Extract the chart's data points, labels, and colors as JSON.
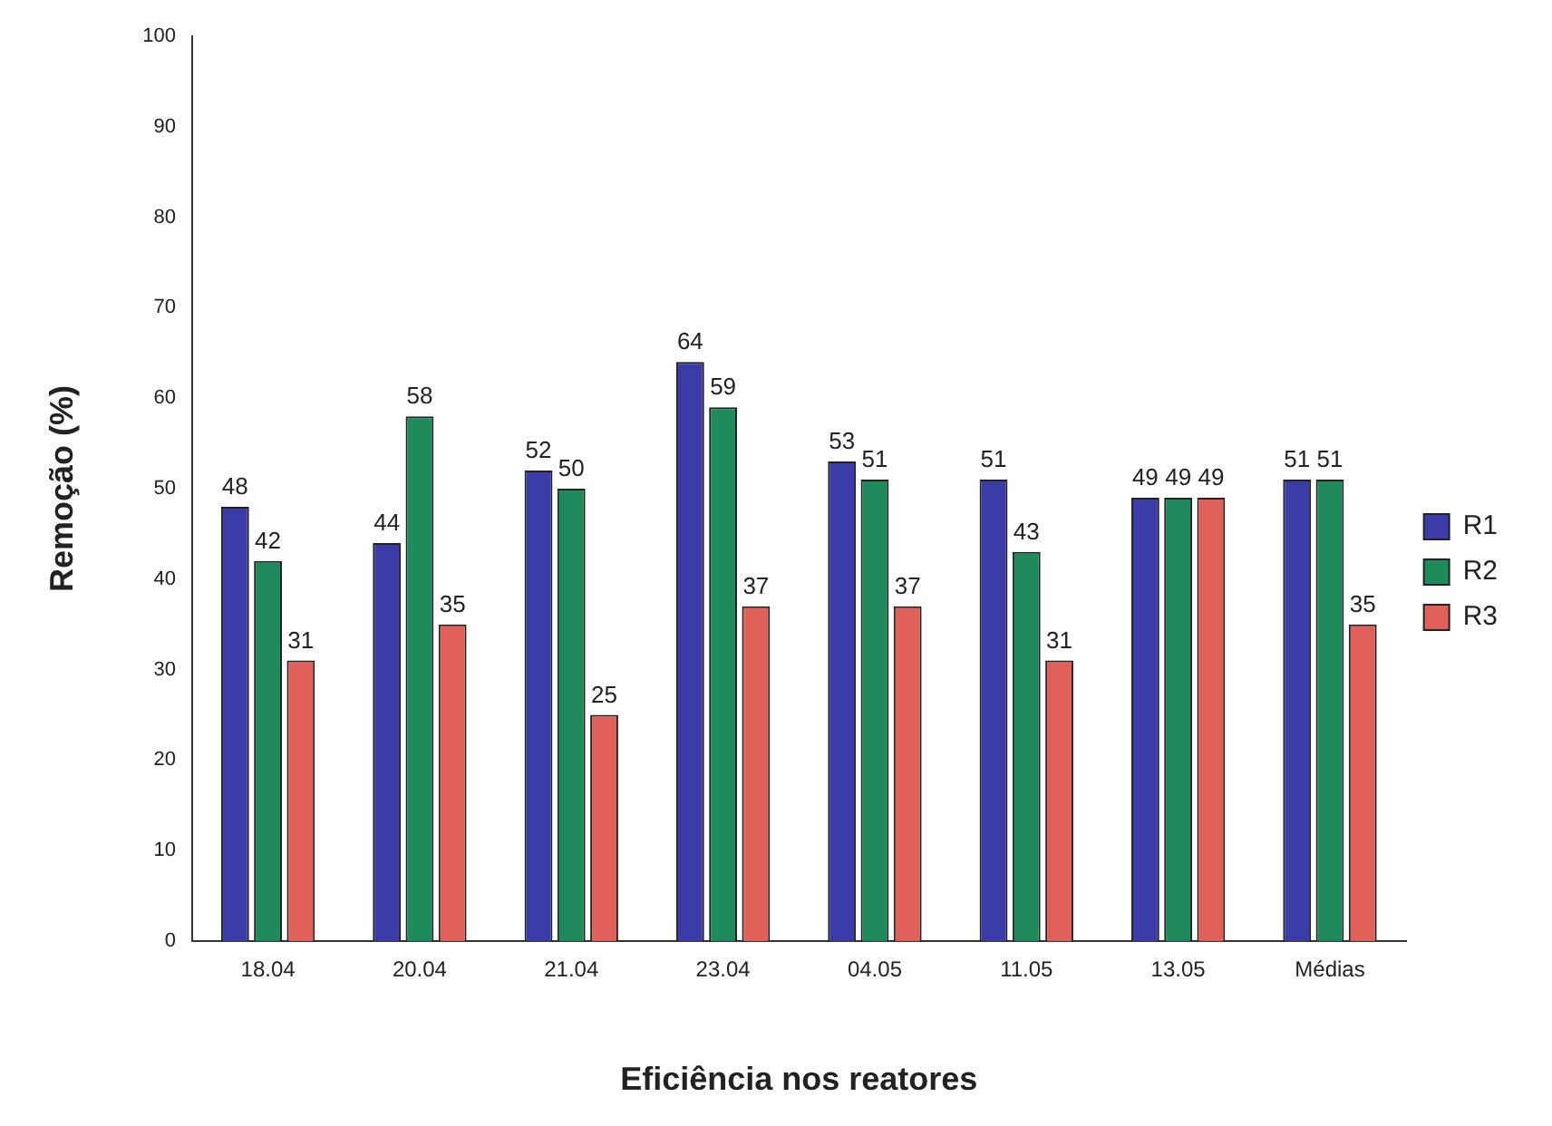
{
  "chart_data": {
    "type": "bar",
    "xlabel": "Eficiência nos reatores",
    "ylabel": "Remoção (%)",
    "categories": [
      "18.04",
      "20.04",
      "21.04",
      "23.04",
      "04.05",
      "11.05",
      "13.05",
      "Médias"
    ],
    "series": [
      {
        "name": "R1",
        "color": "#3c3ca8",
        "values": [
          48,
          44,
          52,
          64,
          53,
          51,
          49,
          51
        ]
      },
      {
        "name": "R2",
        "color": "#1f8a5c",
        "values": [
          42,
          58,
          50,
          59,
          51,
          43,
          49,
          51
        ]
      },
      {
        "name": "R3",
        "color": "#e0605a",
        "values": [
          31,
          35,
          25,
          37,
          37,
          31,
          49,
          35
        ]
      }
    ],
    "ylim": [
      0,
      100
    ],
    "yticks": [
      0,
      10,
      20,
      30,
      40,
      50,
      60,
      70,
      80,
      90,
      100
    ],
    "grid": false,
    "legend": "right",
    "data_labels": true
  }
}
